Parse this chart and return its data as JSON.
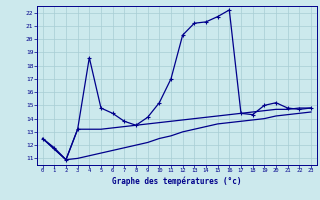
{
  "xlabel": "Graphe des températures (°c)",
  "background_color": "#cce9ed",
  "plot_bg_color": "#cce9ed",
  "line_color": "#00008b",
  "grid_color": "#a8cdd4",
  "xlim": [
    -0.5,
    23.5
  ],
  "ylim": [
    10.5,
    22.5
  ],
  "xticks": [
    0,
    1,
    2,
    3,
    4,
    5,
    6,
    7,
    8,
    9,
    10,
    11,
    12,
    13,
    14,
    15,
    16,
    17,
    18,
    19,
    20,
    21,
    22,
    23
  ],
  "yticks": [
    11,
    12,
    13,
    14,
    15,
    16,
    17,
    18,
    19,
    20,
    21,
    22
  ],
  "curve1_x": [
    0,
    1,
    2,
    3,
    4,
    5,
    6,
    7,
    8,
    9,
    10,
    11,
    12,
    13,
    14,
    15,
    16,
    17,
    18,
    19,
    20,
    21,
    22,
    23
  ],
  "curve1_y": [
    12.5,
    11.8,
    10.9,
    13.2,
    18.6,
    14.8,
    14.4,
    13.8,
    13.5,
    14.1,
    15.2,
    17.0,
    20.3,
    21.2,
    21.3,
    21.7,
    22.2,
    14.4,
    14.3,
    15.0,
    15.2,
    14.8,
    14.7,
    14.8
  ],
  "curve2_x": [
    0,
    2,
    3,
    4,
    5,
    6,
    7,
    8,
    9,
    10,
    11,
    12,
    13,
    14,
    15,
    16,
    17,
    18,
    19,
    20,
    21,
    22,
    23
  ],
  "curve2_y": [
    12.5,
    10.9,
    13.2,
    13.2,
    13.2,
    13.3,
    13.4,
    13.5,
    13.6,
    13.7,
    13.8,
    13.9,
    14.0,
    14.1,
    14.2,
    14.3,
    14.4,
    14.5,
    14.6,
    14.7,
    14.7,
    14.8,
    14.8
  ],
  "curve3_x": [
    0,
    2,
    3,
    4,
    5,
    6,
    7,
    8,
    9,
    10,
    11,
    12,
    13,
    14,
    15,
    16,
    17,
    18,
    19,
    20,
    21,
    22,
    23
  ],
  "curve3_y": [
    12.5,
    10.9,
    11.0,
    11.2,
    11.4,
    11.6,
    11.8,
    12.0,
    12.2,
    12.5,
    12.7,
    13.0,
    13.2,
    13.4,
    13.6,
    13.7,
    13.8,
    13.9,
    14.0,
    14.2,
    14.3,
    14.4,
    14.5
  ]
}
